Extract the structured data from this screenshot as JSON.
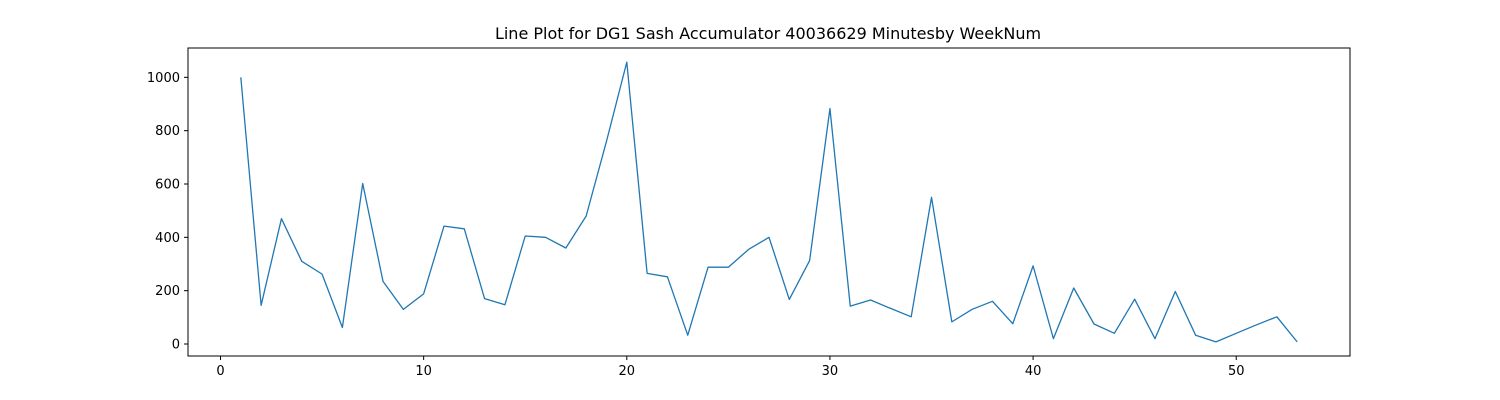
{
  "chart_data": {
    "type": "line",
    "title": "Line Plot for DG1 Sash Accumulator 40036629 Minutesby WeekNum",
    "xlabel": "",
    "ylabel": "",
    "xlim": [
      -1.6,
      55.6
    ],
    "ylim": [
      -45,
      1110
    ],
    "xticks": [
      0,
      10,
      20,
      30,
      40,
      50
    ],
    "yticks": [
      0,
      200,
      400,
      600,
      800,
      1000
    ],
    "grid": false,
    "line_color": "#1f77b4",
    "series": [
      {
        "x": [
          1,
          2,
          3,
          4,
          5,
          6,
          7,
          8,
          9,
          10,
          11,
          12,
          13,
          14,
          15,
          16,
          17,
          18,
          19,
          20,
          21,
          22,
          23,
          24,
          25,
          26,
          27,
          28,
          29,
          30,
          31,
          32,
          33,
          34,
          35,
          36,
          37,
          38,
          39,
          40,
          41,
          42,
          43,
          44,
          45,
          46,
          47,
          48,
          49,
          50,
          51,
          52,
          53
        ],
        "values": [
          1000,
          145,
          470,
          310,
          262,
          62,
          602,
          235,
          130,
          188,
          442,
          432,
          170,
          147,
          405,
          400,
          360,
          480,
          760,
          1057,
          265,
          252,
          33,
          288,
          288,
          355,
          400,
          167,
          313,
          883,
          142,
          165,
          133,
          102,
          550,
          83,
          130,
          160,
          76,
          293,
          20,
          210,
          75,
          40,
          168,
          20,
          197,
          33,
          8,
          40,
          72,
          102,
          8
        ]
      }
    ]
  }
}
